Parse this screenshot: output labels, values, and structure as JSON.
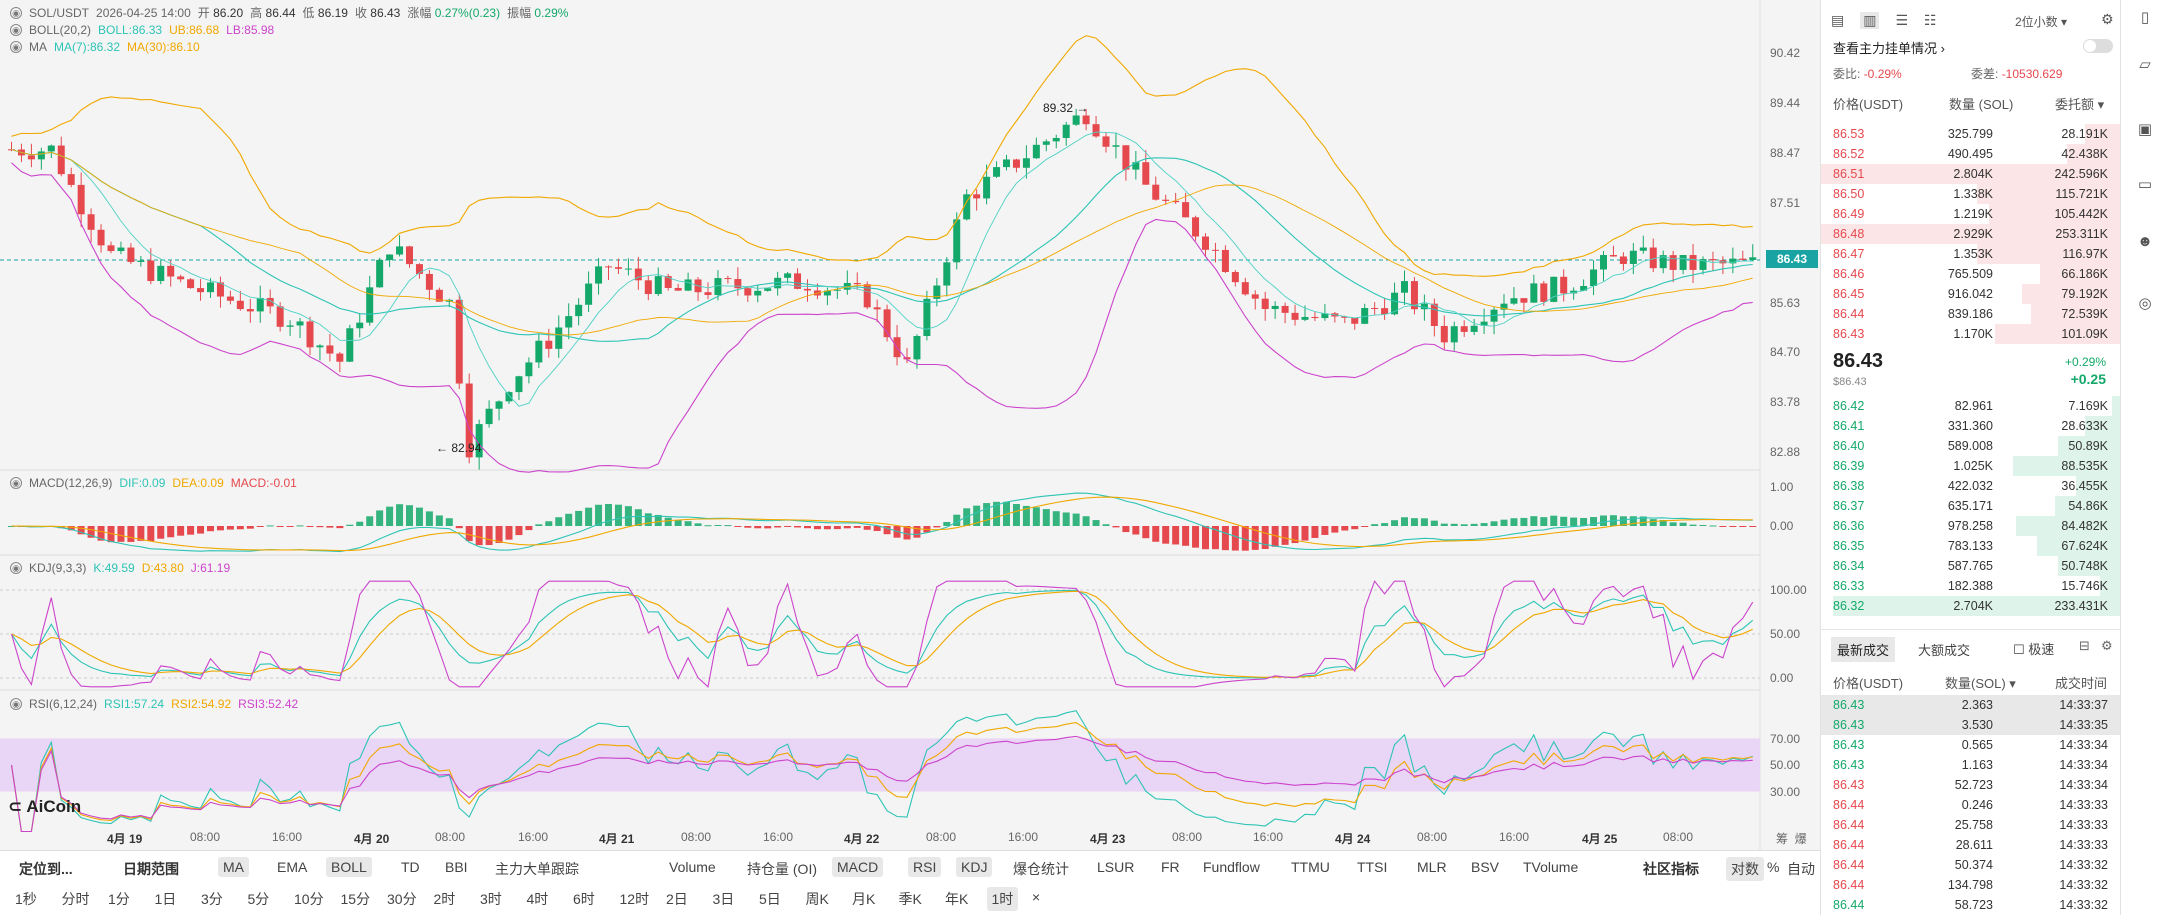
{
  "header": {
    "symbol": "SOL/USDT",
    "datetime": "2026-04-25 14:00",
    "open_label": "开",
    "open": "86.20",
    "high_label": "高",
    "high": "86.44",
    "low_label": "低",
    "low": "86.19",
    "close_label": "收",
    "close": "86.43",
    "change_label": "涨幅",
    "change": "0.27%(0.23)",
    "amp_label": "振幅",
    "amp": "0.29%"
  },
  "indicators": {
    "boll": {
      "name": "BOLL(20,2)",
      "mid": "BOLL:86.33",
      "up": "UB:86.68",
      "low": "LB:85.98"
    },
    "ma": {
      "name": "MA",
      "ma7": "MA(7):86.32",
      "ma30": "MA(30):86.10"
    },
    "macd": {
      "name": "MACD(12,26,9)",
      "dif": "DIF:0.09",
      "dea": "DEA:0.09",
      "macd": "MACD:-0.01"
    },
    "kdj": {
      "name": "KDJ(9,3,3)",
      "k": "K:49.59",
      "d": "D:43.80",
      "j": "J:61.19"
    },
    "rsi": {
      "name": "RSI(6,12,24)",
      "r1": "RSI1:57.24",
      "r2": "RSI2:54.92",
      "r3": "RSI3:52.42"
    }
  },
  "price_axis": [
    "90.42",
    "89.44",
    "88.47",
    "87.51",
    "86.43",
    "85.63",
    "84.70",
    "83.78",
    "82.88"
  ],
  "current_price_tag": "86.43",
  "high_marker": "89.32 →",
  "low_marker": "← 82.94",
  "macd_axis": [
    "1.00",
    "0.00"
  ],
  "kdj_axis": [
    "100.00",
    "50.00",
    "0.00"
  ],
  "rsi_axis": [
    "70.00",
    "50.00",
    "30.00"
  ],
  "time_axis": [
    "4月 19",
    "08:00",
    "16:00",
    "4月 20",
    "08:00",
    "16:00",
    "4月 21",
    "08:00",
    "16:00",
    "4月 22",
    "08:00",
    "16:00",
    "4月 23",
    "08:00",
    "16:00",
    "4月 24",
    "08:00",
    "16:00",
    "4月 25",
    "08:00"
  ],
  "logo": "AiCoin",
  "axis_corner": [
    "筹",
    "爆"
  ],
  "toolbar": {
    "row1": [
      "定位到...",
      "日期范围",
      "MA",
      "EMA",
      "BOLL",
      "TD",
      "BBI",
      "主力大单跟踪",
      "Volume",
      "持仓量 (OI)",
      "MACD",
      "RSI",
      "KDJ",
      "爆仓统计",
      "LSUR",
      "FR",
      "Fundflow",
      "TTMU",
      "TTSI",
      "MLR",
      "BSV",
      "TVolume",
      "社区指标",
      "对数",
      "%",
      "自动"
    ],
    "row2": [
      "1秒",
      "分时",
      "1分",
      "1日",
      "3分",
      "5分",
      "10分",
      "15分",
      "30分",
      "2时",
      "3时",
      "4时",
      "6时",
      "12时",
      "2日",
      "3日",
      "5日",
      "周K",
      "月K",
      "季K",
      "年K",
      "1时"
    ]
  },
  "orderbook": {
    "precision": "2位小数",
    "main_orders": "查看主力挂单情况",
    "wb_label": "委比:",
    "wb": "-0.29%",
    "wc_label": "委差:",
    "wc": "-10530.629",
    "headers": [
      "价格(USDT)",
      "数量 (SOL)",
      "委托额"
    ],
    "asks": [
      [
        "86.53",
        "325.799",
        "28.191K",
        0.12
      ],
      [
        "86.52",
        "490.495",
        "42.438K",
        0.18
      ],
      [
        "86.51",
        "2.804K",
        "242.596K",
        1.0
      ],
      [
        "86.50",
        "1.338K",
        "115.721K",
        0.48
      ],
      [
        "86.49",
        "1.219K",
        "105.442K",
        0.44
      ],
      [
        "86.48",
        "2.929K",
        "253.311K",
        1.0
      ],
      [
        "86.47",
        "1.353K",
        "116.97K",
        0.48
      ],
      [
        "86.46",
        "765.509",
        "66.186K",
        0.27
      ],
      [
        "86.45",
        "916.042",
        "79.192K",
        0.33
      ],
      [
        "86.44",
        "839.186",
        "72.539K",
        0.3
      ],
      [
        "86.43",
        "1.170K",
        "101.09K",
        0.42
      ]
    ],
    "mid_price": "86.43",
    "mid_sub": "$86.43",
    "mid_pct": "+0.29%",
    "mid_chg": "+0.25",
    "bids": [
      [
        "86.42",
        "82.961",
        "7.169K",
        0.03
      ],
      [
        "86.41",
        "331.360",
        "28.633K",
        0.12
      ],
      [
        "86.40",
        "589.008",
        "50.89K",
        0.21
      ],
      [
        "86.39",
        "1.025K",
        "88.535K",
        0.36
      ],
      [
        "86.38",
        "422.032",
        "36.455K",
        0.15
      ],
      [
        "86.37",
        "635.171",
        "54.86K",
        0.22
      ],
      [
        "86.36",
        "978.258",
        "84.482K",
        0.35
      ],
      [
        "86.35",
        "783.133",
        "67.624K",
        0.28
      ],
      [
        "86.34",
        "587.765",
        "50.748K",
        0.21
      ],
      [
        "86.33",
        "182.388",
        "15.746K",
        0.07
      ],
      [
        "86.32",
        "2.704K",
        "233.431K",
        0.96
      ]
    ]
  },
  "trades": {
    "tabs": [
      "最新成交",
      "大额成交"
    ],
    "fast": "极速",
    "headers": [
      "价格(USDT)",
      "数量(SOL)",
      "成交时间"
    ],
    "rows": [
      [
        "86.43",
        "2.363",
        "14:33:37",
        "g"
      ],
      [
        "86.43",
        "3.530",
        "14:33:35",
        "g"
      ],
      [
        "86.43",
        "0.565",
        "14:33:34",
        "g"
      ],
      [
        "86.43",
        "1.163",
        "14:33:34",
        "g"
      ],
      [
        "86.43",
        "52.723",
        "14:33:34",
        "r"
      ],
      [
        "86.44",
        "0.246",
        "14:33:33",
        "r"
      ],
      [
        "86.44",
        "25.758",
        "14:33:33",
        "r"
      ],
      [
        "86.44",
        "28.611",
        "14:33:33",
        "r"
      ],
      [
        "86.44",
        "50.374",
        "14:33:32",
        "r"
      ],
      [
        "86.44",
        "134.798",
        "14:33:32",
        "r"
      ],
      [
        "86.44",
        "58.723",
        "14:33:32",
        "g"
      ]
    ]
  },
  "colors": {
    "up": "#14a86a",
    "down": "#e5484d",
    "ma7": "#2ec4b6",
    "ma30": "#f0a800",
    "boll_band": "#cc44cc"
  }
}
